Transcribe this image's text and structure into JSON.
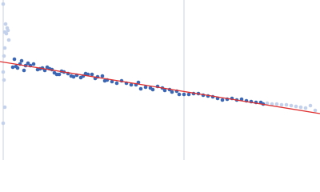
{
  "chart_data": {
    "type": "scatter",
    "xlim": [
      0,
      400
    ],
    "ylim": [
      0,
      200
    ],
    "vlines": [
      4,
      230
    ],
    "vline_color": "#c8d2e6",
    "series": [
      {
        "color": "#3a66b4",
        "x": [
          16,
          18,
          20,
          22,
          25,
          27,
          30,
          32,
          35,
          38,
          42,
          47,
          50,
          53,
          56,
          59,
          62,
          65,
          68,
          71,
          74,
          77,
          80,
          85,
          89,
          92,
          96,
          101,
          104,
          107,
          110,
          115,
          119,
          122,
          128,
          131,
          134,
          140,
          146,
          152,
          158,
          164,
          170,
          173,
          176,
          182,
          188,
          191,
          197,
          203,
          206,
          212,
          215,
          221,
          224,
          230,
          236,
          242,
          248,
          254,
          260,
          266,
          272,
          278,
          284,
          290,
          296,
          302,
          308,
          314,
          320,
          326,
          329
        ],
        "values": [
          116,
          126,
          117,
          115,
          120,
          124,
          112,
          118,
          121,
          118,
          120,
          113,
          114,
          115,
          112,
          116,
          114,
          113,
          109,
          107,
          107,
          111,
          110,
          108,
          105,
          104,
          106,
          103,
          105,
          108,
          107,
          107,
          102,
          104,
          105,
          99,
          100,
          98,
          96,
          99,
          96,
          94,
          94,
          97,
          89,
          91,
          90,
          88,
          92,
          90,
          87,
          88,
          85,
          86,
          82,
          82,
          82,
          83,
          83,
          81,
          80,
          79,
          77,
          75,
          76,
          77,
          75,
          76,
          74,
          73,
          72,
          72,
          70
        ]
      },
      {
        "color": "#c3d1ea",
        "x": [
          4,
          6,
          7,
          8,
          9,
          10,
          11,
          6,
          5,
          4,
          5,
          6,
          4,
          334,
          340,
          346,
          352,
          358,
          364,
          370,
          376,
          382,
          388,
          394
        ],
        "values": [
          195,
          160,
          170,
          158,
          165,
          162,
          150,
          140,
          130,
          110,
          100,
          66,
          46,
          71,
          70,
          70,
          69,
          69,
          68,
          67,
          66,
          65,
          68,
          62
        ]
      }
    ],
    "fit": {
      "color": "#e03030",
      "x": [
        0,
        400
      ],
      "values": [
        123,
        58
      ]
    }
  }
}
